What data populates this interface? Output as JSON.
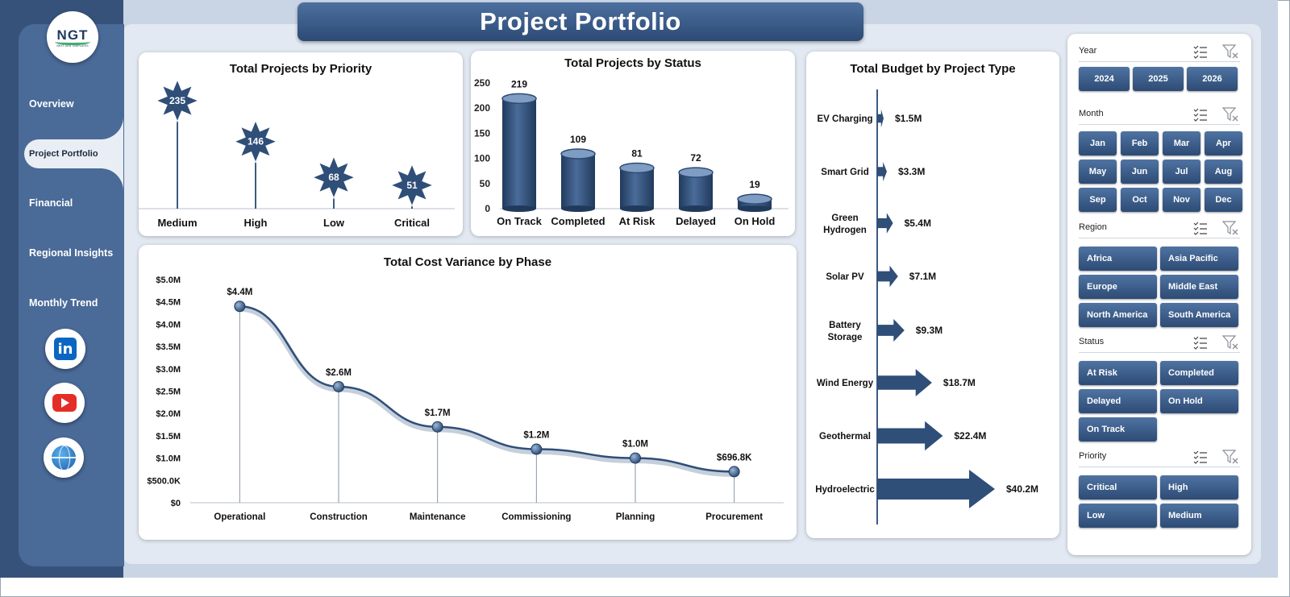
{
  "app_title": "Project Portfolio",
  "logo": {
    "text": "NGT",
    "subtext": "NEXT GEN TEMPLATES"
  },
  "nav": {
    "items": [
      {
        "label": "Overview"
      },
      {
        "label": "Project Portfolio",
        "active": true
      },
      {
        "label": "Financial"
      },
      {
        "label": "Regional Insights"
      },
      {
        "label": "Monthly Trend"
      }
    ]
  },
  "social": [
    {
      "name": "linkedin-icon",
      "glyph": "in"
    },
    {
      "name": "youtube-icon"
    },
    {
      "name": "website-globe-icon"
    }
  ],
  "colors": {
    "primary": "#2d4b75",
    "sidebar": "#4a6a98",
    "dark": "#37527a",
    "background": "#e2e9f2",
    "marker": "#2f4e78"
  },
  "charts": {
    "priority": {
      "title": "Total Projects by Priority"
    },
    "status": {
      "title": "Total Projects by Status"
    },
    "budget": {
      "title": "Total Budget by Project Type"
    },
    "variance": {
      "title": "Total Cost Variance by Phase"
    }
  },
  "chart_data": [
    {
      "id": "priority",
      "type": "bar",
      "title": "Total Projects by Priority",
      "categories": [
        "Medium",
        "High",
        "Low",
        "Critical"
      ],
      "values": [
        235,
        146,
        68,
        51
      ],
      "data_labels": [
        "235",
        "146",
        "68",
        "51"
      ]
    },
    {
      "id": "status",
      "type": "bar",
      "title": "Total Projects by Status",
      "categories": [
        "On Track",
        "Completed",
        "At Risk",
        "Delayed",
        "On Hold"
      ],
      "values": [
        219,
        109,
        81,
        72,
        19
      ],
      "data_labels": [
        "219",
        "109",
        "81",
        "72",
        "19"
      ],
      "ylim": [
        0,
        250
      ],
      "yticks": [
        "0",
        "50",
        "100",
        "150",
        "200",
        "250"
      ]
    },
    {
      "id": "budget",
      "type": "bar",
      "title": "Total Budget by Project Type",
      "categories": [
        "EV Charging",
        "Smart Grid",
        "Green Hydrogen",
        "Solar PV",
        "Battery Storage",
        "Wind Energy",
        "Geothermal",
        "Hydroelectric"
      ],
      "values": [
        1.5,
        3.3,
        5.4,
        7.1,
        9.3,
        18.7,
        22.4,
        40.2
      ],
      "data_labels": [
        "$1.5M",
        "$3.3M",
        "$5.4M",
        "$7.1M",
        "$9.3M",
        "$18.7M",
        "$22.4M",
        "$40.2M"
      ]
    },
    {
      "id": "variance",
      "type": "line",
      "title": "Total Cost Variance by Phase",
      "categories": [
        "Operational",
        "Construction",
        "Maintenance",
        "Commissioning",
        "Planning",
        "Procurement"
      ],
      "values": [
        4.4,
        2.6,
        1.7,
        1.2,
        1.0,
        0.6968
      ],
      "data_labels": [
        "$4.4M",
        "$2.6M",
        "$1.7M",
        "$1.2M",
        "$1.0M",
        "$696.8K"
      ],
      "ylim": [
        0,
        5
      ],
      "yticks": [
        "$0",
        "$500.0K",
        "$1.0M",
        "$1.5M",
        "$2.0M",
        "$2.5M",
        "$3.0M",
        "$3.5M",
        "$4.0M",
        "$4.5M",
        "$5.0M"
      ]
    }
  ],
  "slicers": {
    "year": {
      "label": "Year",
      "options": [
        "2024",
        "2025",
        "2026"
      ]
    },
    "month": {
      "label": "Month",
      "options": [
        "Jan",
        "Feb",
        "Mar",
        "Apr",
        "May",
        "Jun",
        "Jul",
        "Aug",
        "Sep",
        "Oct",
        "Nov",
        "Dec"
      ]
    },
    "region": {
      "label": "Region",
      "options": [
        "Africa",
        "Asia Pacific",
        "Europe",
        "Middle East",
        "North America",
        "South America"
      ]
    },
    "status": {
      "label": "Status",
      "options": [
        "At Risk",
        "Completed",
        "Delayed",
        "On Hold",
        "On Track"
      ]
    },
    "priority": {
      "label": "Priority",
      "options": [
        "Critical",
        "High",
        "Low",
        "Medium"
      ]
    }
  }
}
